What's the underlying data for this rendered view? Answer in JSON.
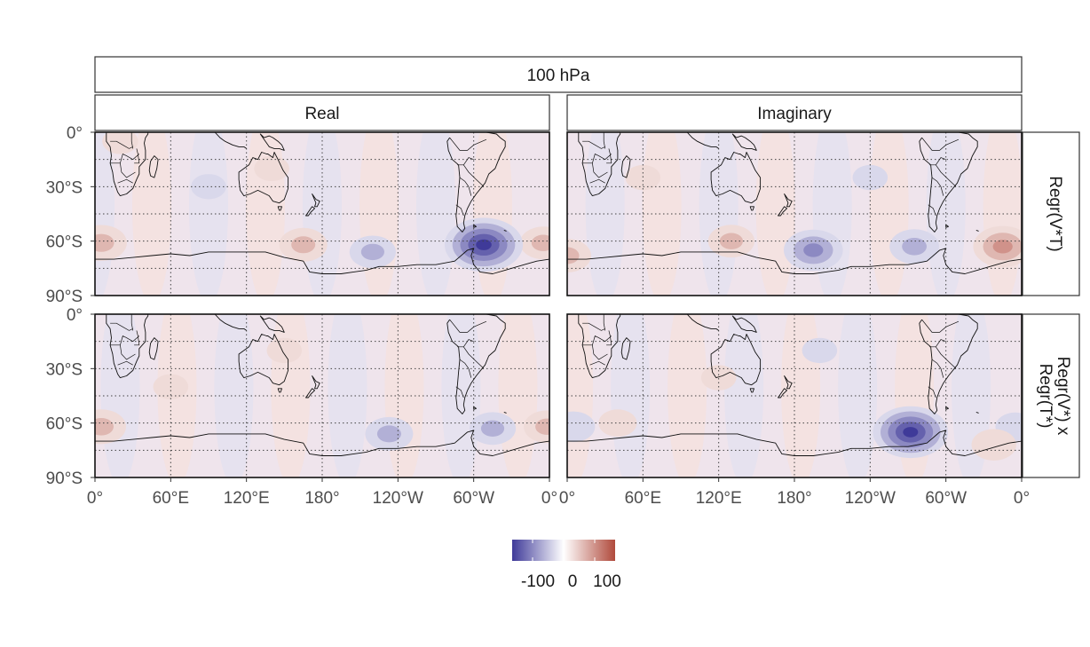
{
  "chart_data": {
    "type": "heatmap",
    "title": "100 hPa",
    "column_labels": [
      "Real",
      "Imaginary"
    ],
    "row_labels": [
      [
        "Regr(V*T)"
      ],
      [
        "Regr(V*) x",
        "Regr(T*)"
      ]
    ],
    "x_ticks": [
      "0°",
      "60°E",
      "120°E",
      "180°",
      "120°W",
      "60°W",
      "0°"
    ],
    "y_ticks": [
      "0°",
      "30°S",
      "60°S",
      "90°S"
    ],
    "x_range": [
      0,
      360
    ],
    "y_range": [
      -90,
      0
    ],
    "grid": "dotted",
    "legend": {
      "position": "bottom",
      "ticks": [
        "-100",
        "0",
        "100"
      ],
      "limits": [
        -150,
        150
      ],
      "colors": {
        "negative": "#3f3a99",
        "zero": "#ffffff",
        "positive": "#b04a3c"
      }
    },
    "panels": [
      {
        "row": 0,
        "col": 0,
        "anomalies": [
          {
            "lon": 5,
            "lat": -61,
            "value": 60
          },
          {
            "lon": 355,
            "lat": -61,
            "value": 45
          },
          {
            "lon": 165,
            "lat": -62,
            "value": 50
          },
          {
            "lon": 220,
            "lat": -66,
            "value": -45
          },
          {
            "lon": 308,
            "lat": -62,
            "value": -145
          },
          {
            "lon": 20,
            "lat": -5,
            "value": 12
          },
          {
            "lon": 90,
            "lat": -30,
            "value": -10
          },
          {
            "lon": 140,
            "lat": -20,
            "value": 10
          }
        ]
      },
      {
        "row": 0,
        "col": 1,
        "anomalies": [
          {
            "lon": 0,
            "lat": -68,
            "value": 50
          },
          {
            "lon": 345,
            "lat": -63,
            "value": 85
          },
          {
            "lon": 130,
            "lat": -60,
            "value": 45
          },
          {
            "lon": 195,
            "lat": -65,
            "value": -85
          },
          {
            "lon": 275,
            "lat": -63,
            "value": -55
          },
          {
            "lon": 60,
            "lat": -25,
            "value": 10
          },
          {
            "lon": 240,
            "lat": -25,
            "value": -10
          }
        ]
      },
      {
        "row": 1,
        "col": 0,
        "anomalies": [
          {
            "lon": 5,
            "lat": -62,
            "value": 55
          },
          {
            "lon": 358,
            "lat": -62,
            "value": 45
          },
          {
            "lon": 233,
            "lat": -66,
            "value": -50
          },
          {
            "lon": 315,
            "lat": -63,
            "value": -45
          },
          {
            "lon": 150,
            "lat": -20,
            "value": 10
          },
          {
            "lon": 60,
            "lat": -40,
            "value": 10
          }
        ]
      },
      {
        "row": 1,
        "col": 1,
        "anomalies": [
          {
            "lon": 272,
            "lat": -65,
            "value": -135
          },
          {
            "lon": 5,
            "lat": -62,
            "value": -35
          },
          {
            "lon": 355,
            "lat": -62,
            "value": -25
          },
          {
            "lon": 338,
            "lat": -72,
            "value": 40
          },
          {
            "lon": 40,
            "lat": -60,
            "value": 20
          },
          {
            "lon": 120,
            "lat": -35,
            "value": 10
          },
          {
            "lon": 200,
            "lat": -20,
            "value": -10
          }
        ]
      }
    ]
  }
}
